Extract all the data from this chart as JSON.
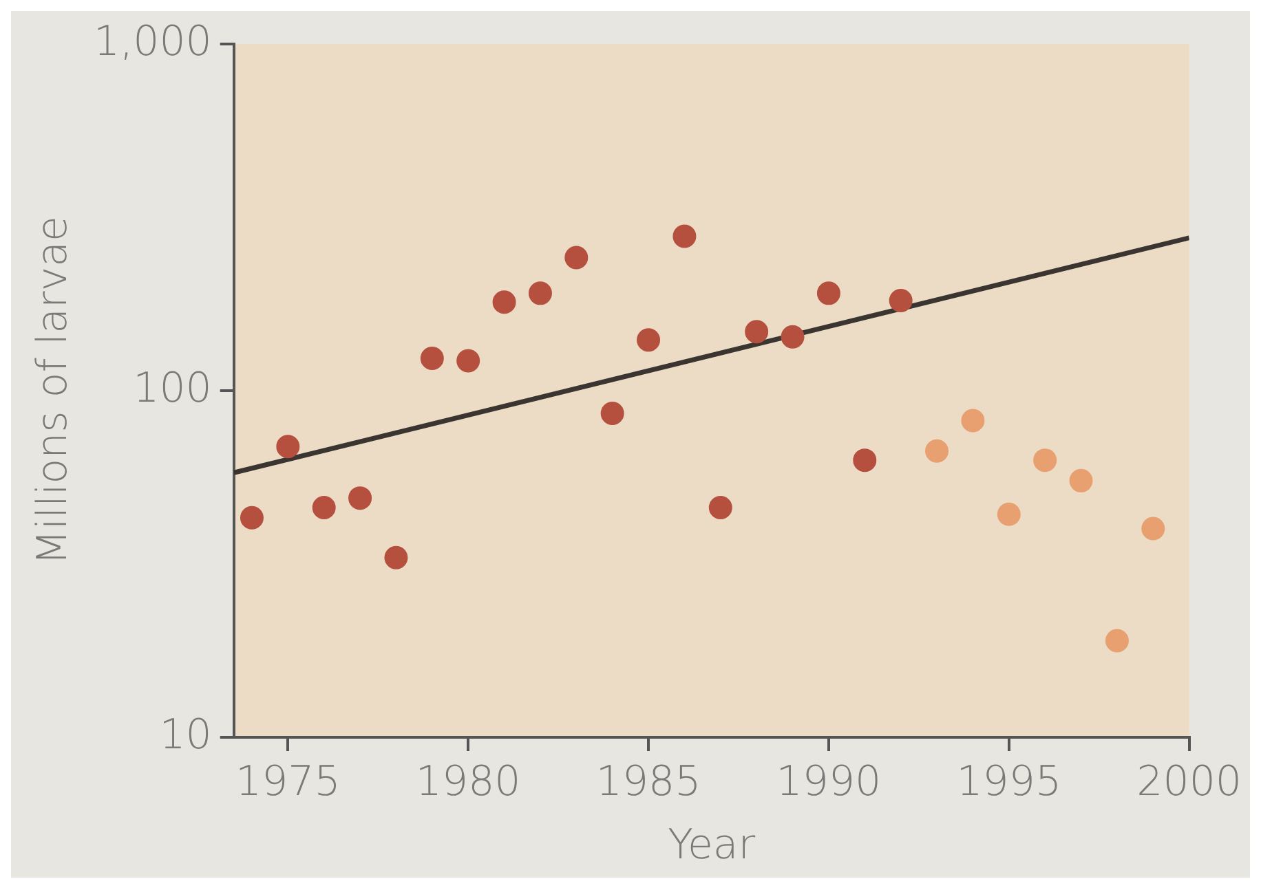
{
  "chart_data": {
    "type": "scatter",
    "xlabel": "Year",
    "ylabel": "Millions of larvae",
    "log": "y",
    "grid": false,
    "legend": false,
    "marker": "circle",
    "xlim": [
      1973.5,
      2000
    ],
    "xticks": [
      1975,
      1980,
      1985,
      1990,
      1995,
      2000
    ],
    "ylim": [
      10,
      1000
    ],
    "yticks": [
      10,
      100,
      {
        "value": 1000,
        "label": "1,000"
      }
    ],
    "series": [
      {
        "color": "#b5503f",
        "x": [
          1974,
          1975,
          1976,
          1977,
          1978,
          1979,
          1980,
          1981,
          1982,
          1983,
          1984,
          1985,
          1986,
          1987,
          1988,
          1989,
          1990,
          1991,
          1992
        ],
        "values": [
          43,
          69,
          46,
          49,
          33,
          124,
          122,
          180,
          191,
          242,
          86,
          140,
          279,
          46,
          148,
          143,
          191,
          63,
          182
        ]
      },
      {
        "color": "#e8a070",
        "x": [
          1993,
          1994,
          1995,
          1996,
          1997,
          1998,
          1999
        ],
        "values": [
          67,
          82,
          44,
          63,
          55,
          19,
          40
        ]
      },
      {
        "type": "line",
        "color": "#3a3530",
        "line_style": "solid",
        "marker": "none",
        "x": [
          1973.5,
          2000
        ],
        "values": [
          58,
          276
        ]
      }
    ]
  }
}
